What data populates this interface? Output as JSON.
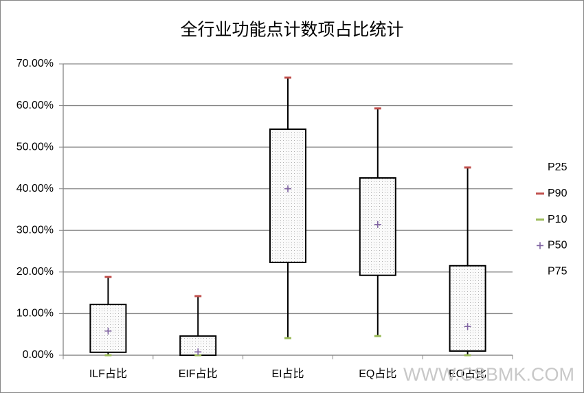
{
  "chart_data": {
    "type": "box",
    "title": "全行业功能点计数项占比统计",
    "categories": [
      "ILF占比",
      "EIF占比",
      "EI占比",
      "EQ占比",
      "EO占比"
    ],
    "series": [
      {
        "name": "P25",
        "values": [
          0.7,
          0,
          22.3,
          19.2,
          1.0
        ]
      },
      {
        "name": "P90",
        "color": "#c0504d",
        "values": [
          18.8,
          14.2,
          66.7,
          59.3,
          45.1
        ]
      },
      {
        "name": "P10",
        "color": "#9bbb59",
        "values": [
          0,
          0,
          4.1,
          4.6,
          0
        ]
      },
      {
        "name": "P50",
        "color": "#8064a2",
        "values": [
          5.8,
          0.8,
          40.0,
          31.4,
          6.9
        ]
      },
      {
        "name": "P75",
        "values": [
          12.2,
          4.6,
          54.3,
          42.6,
          21.5
        ]
      }
    ],
    "ylim": [
      0,
      70
    ],
    "yticks": [
      {
        "value": 0,
        "label": "0.00%"
      },
      {
        "value": 10,
        "label": "10.00%"
      },
      {
        "value": 20,
        "label": "20.00%"
      },
      {
        "value": 30,
        "label": "30.00%"
      },
      {
        "value": 40,
        "label": "40.00%"
      },
      {
        "value": 50,
        "label": "50.00%"
      },
      {
        "value": 60,
        "label": "60.00%"
      },
      {
        "value": 70,
        "label": "70.00%"
      }
    ],
    "grid": true,
    "legend": "right",
    "watermark": "WWW.CSBMK.COM"
  }
}
